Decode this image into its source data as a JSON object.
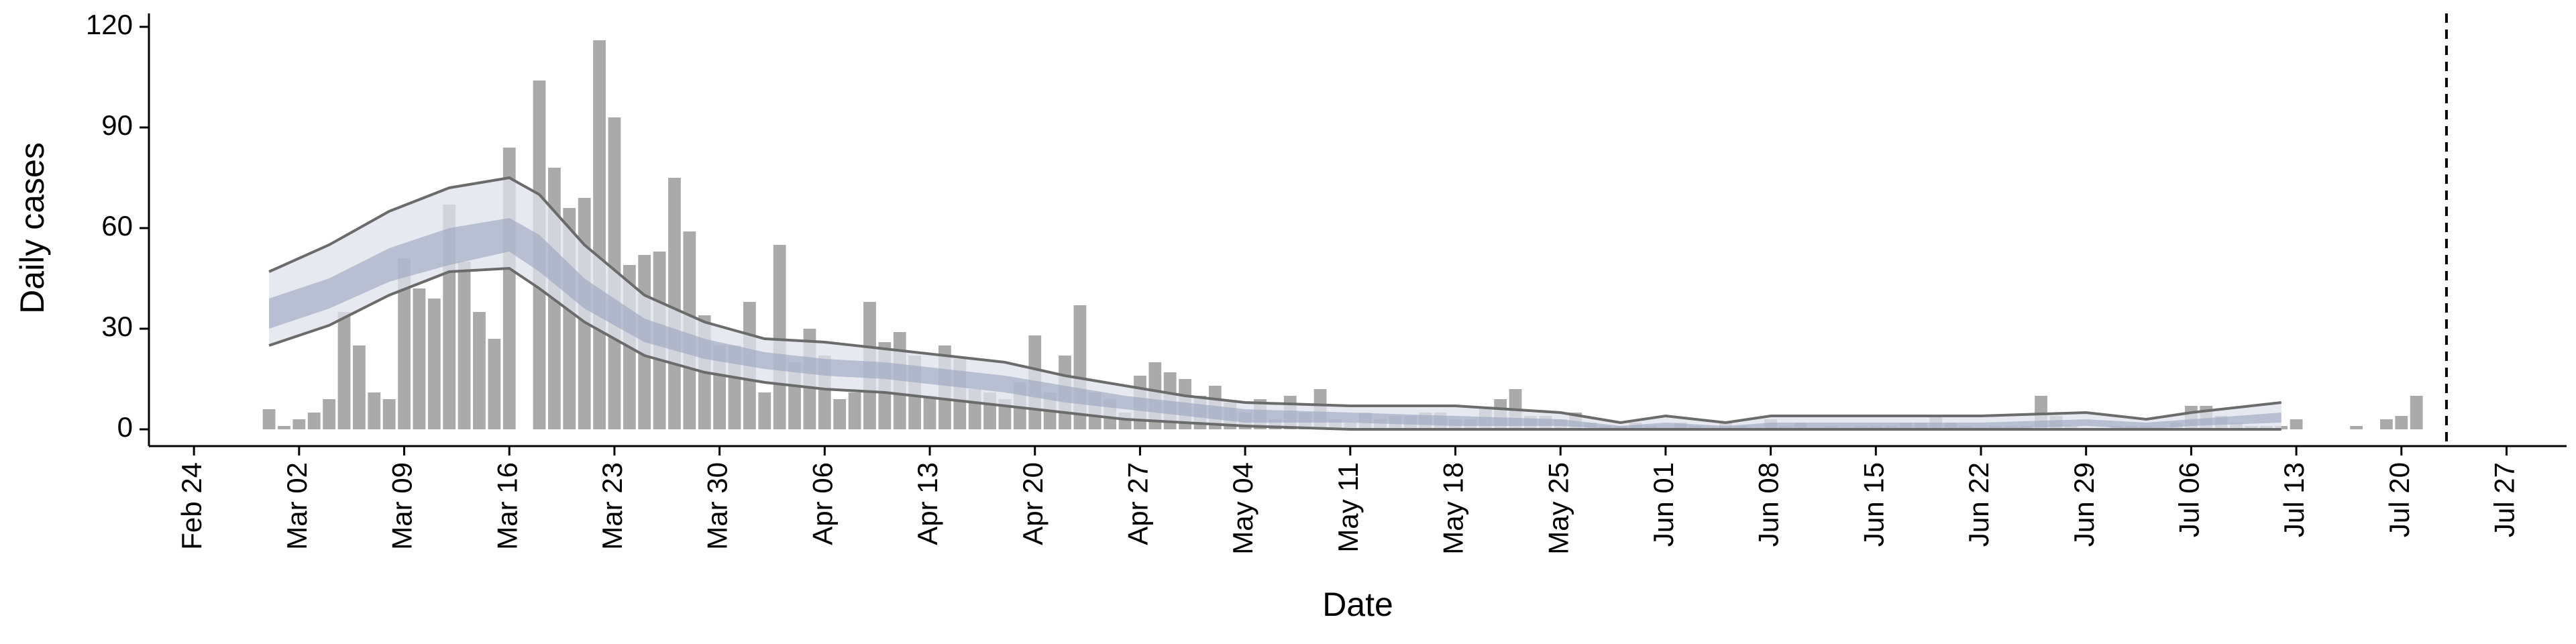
{
  "chart_data": {
    "type": "bar",
    "x_label": "Date",
    "y_label": "Daily cases",
    "x": [
      "Feb 21",
      "Feb 22",
      "Feb 23",
      "Feb 24",
      "Feb 25",
      "Feb 26",
      "Feb 27",
      "Feb 28",
      "Feb 29",
      "Mar 01",
      "Mar 02",
      "Mar 03",
      "Mar 04",
      "Mar 05",
      "Mar 06",
      "Mar 07",
      "Mar 08",
      "Mar 09",
      "Mar 10",
      "Mar 11",
      "Mar 12",
      "Mar 13",
      "Mar 14",
      "Mar 15",
      "Mar 16",
      "Mar 17",
      "Mar 18",
      "Mar 19",
      "Mar 20",
      "Mar 21",
      "Mar 22",
      "Mar 23",
      "Mar 24",
      "Mar 25",
      "Mar 26",
      "Mar 27",
      "Mar 28",
      "Mar 29",
      "Mar 30",
      "Mar 31",
      "Apr 01",
      "Apr 02",
      "Apr 03",
      "Apr 04",
      "Apr 05",
      "Apr 06",
      "Apr 07",
      "Apr 08",
      "Apr 09",
      "Apr 10",
      "Apr 11",
      "Apr 12",
      "Apr 13",
      "Apr 14",
      "Apr 15",
      "Apr 16",
      "Apr 17",
      "Apr 18",
      "Apr 19",
      "Apr 20",
      "Apr 21",
      "Apr 22",
      "Apr 23",
      "Apr 24",
      "Apr 25",
      "Apr 26",
      "Apr 27",
      "Apr 28",
      "Apr 29",
      "Apr 30",
      "May 01",
      "May 02",
      "May 03",
      "May 04",
      "May 05",
      "May 06",
      "May 07",
      "May 08",
      "May 09",
      "May 10",
      "May 11",
      "May 12",
      "May 13",
      "May 14",
      "May 15",
      "May 16",
      "May 17",
      "May 18",
      "May 19",
      "May 20",
      "May 21",
      "May 22",
      "May 23",
      "May 24",
      "May 25",
      "May 26",
      "May 27",
      "May 28",
      "May 29",
      "May 30",
      "May 31",
      "Jun 01",
      "Jun 02",
      "Jun 03",
      "Jun 04",
      "Jun 05",
      "Jun 06",
      "Jun 07",
      "Jun 08",
      "Jun 09",
      "Jun 10",
      "Jun 11",
      "Jun 12",
      "Jun 13",
      "Jun 14",
      "Jun 15",
      "Jun 16",
      "Jun 17",
      "Jun 18",
      "Jun 19",
      "Jun 20",
      "Jun 21",
      "Jun 22",
      "Jun 23",
      "Jun 24",
      "Jun 25",
      "Jun 26",
      "Jun 27",
      "Jun 28",
      "Jun 29",
      "Jun 30",
      "Jul 01",
      "Jul 02",
      "Jul 03",
      "Jul 04",
      "Jul 05",
      "Jul 06",
      "Jul 07",
      "Jul 08",
      "Jul 09",
      "Jul 10",
      "Jul 11",
      "Jul 12",
      "Jul 13",
      "Jul 14",
      "Jul 15",
      "Jul 16",
      "Jul 17",
      "Jul 18",
      "Jul 19",
      "Jul 20",
      "Jul 21",
      "Jul 22",
      "Jul 23",
      "Jul 24",
      "Jul 25",
      "Jul 26",
      "Jul 27",
      "Jul 28",
      "Jul 29",
      "Jul 30",
      "Jul 31"
    ],
    "values": [
      null,
      null,
      null,
      null,
      null,
      null,
      null,
      null,
      6,
      1,
      3,
      5,
      9,
      35,
      25,
      11,
      9,
      51,
      42,
      39,
      67,
      50,
      35,
      27,
      84,
      0,
      104,
      78,
      66,
      69,
      116,
      93,
      49,
      52,
      53,
      75,
      59,
      34,
      25,
      25,
      38,
      11,
      55,
      20,
      30,
      22,
      9,
      11,
      38,
      26,
      29,
      22,
      10,
      25,
      21,
      12,
      11,
      9,
      14,
      28,
      11,
      22,
      37,
      11,
      9,
      5,
      16,
      20,
      17,
      15,
      10,
      13,
      8,
      5,
      9,
      3,
      10,
      5,
      12,
      3,
      2,
      5,
      3,
      4,
      4,
      5,
      5,
      3,
      3,
      6,
      9,
      12,
      4,
      4,
      3,
      5,
      2,
      1,
      1,
      2,
      1,
      0,
      2,
      1,
      0,
      2,
      1,
      0,
      3,
      1,
      2,
      0,
      1,
      0,
      1,
      1,
      1,
      2,
      2,
      4,
      2,
      1,
      0,
      1,
      1,
      1,
      10,
      4,
      1,
      0,
      0,
      1,
      1,
      1,
      0,
      2,
      7,
      7,
      4,
      2,
      1,
      1,
      1,
      3,
      0,
      0,
      0,
      1,
      0,
      3,
      4,
      10,
      null,
      null,
      null,
      null,
      null,
      null,
      null,
      null,
      null,
      null
    ],
    "color": "#aaaaaa",
    "bands": {
      "x": [
        "Feb 29",
        "Mar 04",
        "Mar 08",
        "Mar 12",
        "Mar 16",
        "Mar 18",
        "Mar 21",
        "Mar 25",
        "Mar 29",
        "Apr 02",
        "Apr 06",
        "Apr 10",
        "Apr 14",
        "Apr 18",
        "Apr 22",
        "Apr 26",
        "Apr 30",
        "May 04",
        "May 11",
        "May 18",
        "May 25",
        "May 29",
        "Jun 01",
        "Jun 05",
        "Jun 08",
        "Jun 22",
        "Jun 29",
        "Jul 03",
        "Jul 06",
        "Jul 12"
      ],
      "fill_color": "#dfe2ec",
      "series": [
        {
          "color": "#6b6b6b",
          "values": [
            47,
            55,
            65,
            72,
            75,
            70,
            55,
            40,
            32,
            27,
            26,
            24,
            22,
            20,
            16,
            13,
            10,
            8,
            7,
            7,
            5,
            2,
            4,
            2,
            4,
            4,
            5,
            3,
            5,
            8
          ]
        },
        {
          "color": "#9aa3bf",
          "values": [
            39,
            45,
            54,
            60,
            63,
            58,
            45,
            33,
            27,
            23,
            21,
            20,
            18,
            16,
            13,
            10,
            8,
            6,
            5,
            4,
            3,
            1,
            2,
            1,
            2,
            2,
            3,
            2,
            3,
            5
          ]
        },
        {
          "color": "#9aa3bf",
          "values": [
            30,
            36,
            44,
            49,
            53,
            47,
            36,
            26,
            21,
            18,
            16,
            15,
            13,
            11,
            8,
            6,
            4,
            2,
            2,
            1,
            1,
            0,
            0,
            0,
            0,
            0,
            1,
            0,
            1,
            2
          ]
        },
        {
          "color": "#6b6b6b",
          "values": [
            25,
            31,
            40,
            47,
            48,
            42,
            32,
            22,
            17,
            14,
            12,
            11,
            9,
            7,
            5,
            3,
            2,
            1,
            0,
            0,
            0,
            0,
            0,
            0,
            0,
            0,
            0,
            0,
            0,
            0
          ]
        }
      ]
    },
    "vline": "Jul 23",
    "xlim": [
      "Feb 21",
      "Jul 31"
    ],
    "xticks": [
      "Feb 24",
      "Mar 02",
      "Mar 09",
      "Mar 16",
      "Mar 23",
      "Mar 30",
      "Apr 06",
      "Apr 13",
      "Apr 20",
      "Apr 27",
      "May 04",
      "May 11",
      "May 18",
      "May 25",
      "Jun 01",
      "Jun 08",
      "Jun 15",
      "Jun 22",
      "Jun 29",
      "Jul 06",
      "Jul 13",
      "Jul 20",
      "Jul 27"
    ],
    "ylim": [
      -5,
      122
    ],
    "yticks": [
      0,
      30,
      60,
      90,
      120
    ]
  }
}
